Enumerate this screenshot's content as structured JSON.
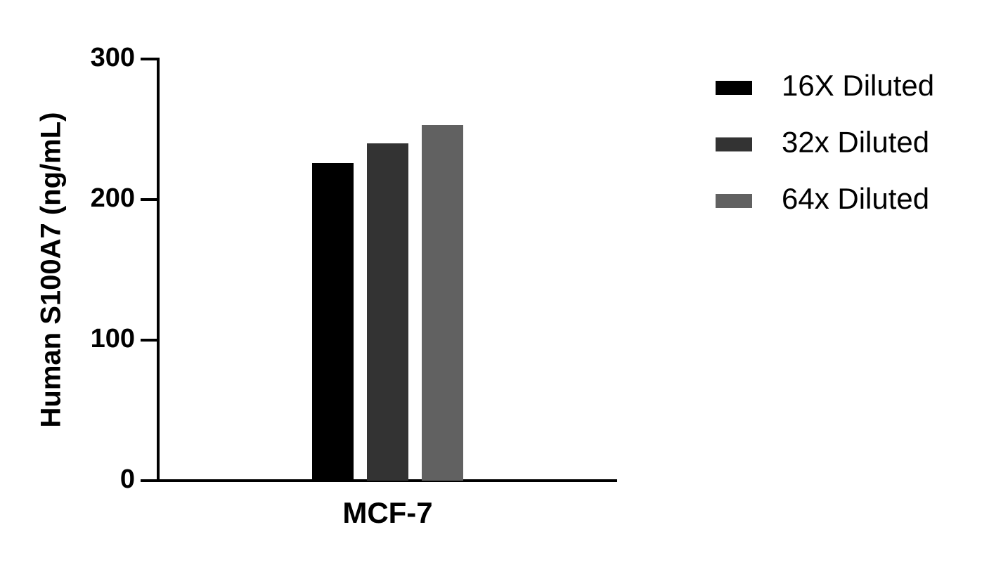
{
  "chart_data": {
    "type": "bar",
    "y_label": "Human S100A7 (ng/mL)",
    "categories": [
      "MCF-7"
    ],
    "series": [
      {
        "name": "16X Diluted",
        "color": "#000000",
        "values": [
          226
        ]
      },
      {
        "name": "32x Diluted",
        "color": "#333333",
        "values": [
          240
        ]
      },
      {
        "name": "64x Diluted",
        "color": "#616161",
        "values": [
          253
        ]
      }
    ],
    "ylim": [
      0,
      300
    ],
    "yticks": [
      0,
      100,
      200,
      300
    ],
    "grid": false,
    "legend": "right"
  }
}
